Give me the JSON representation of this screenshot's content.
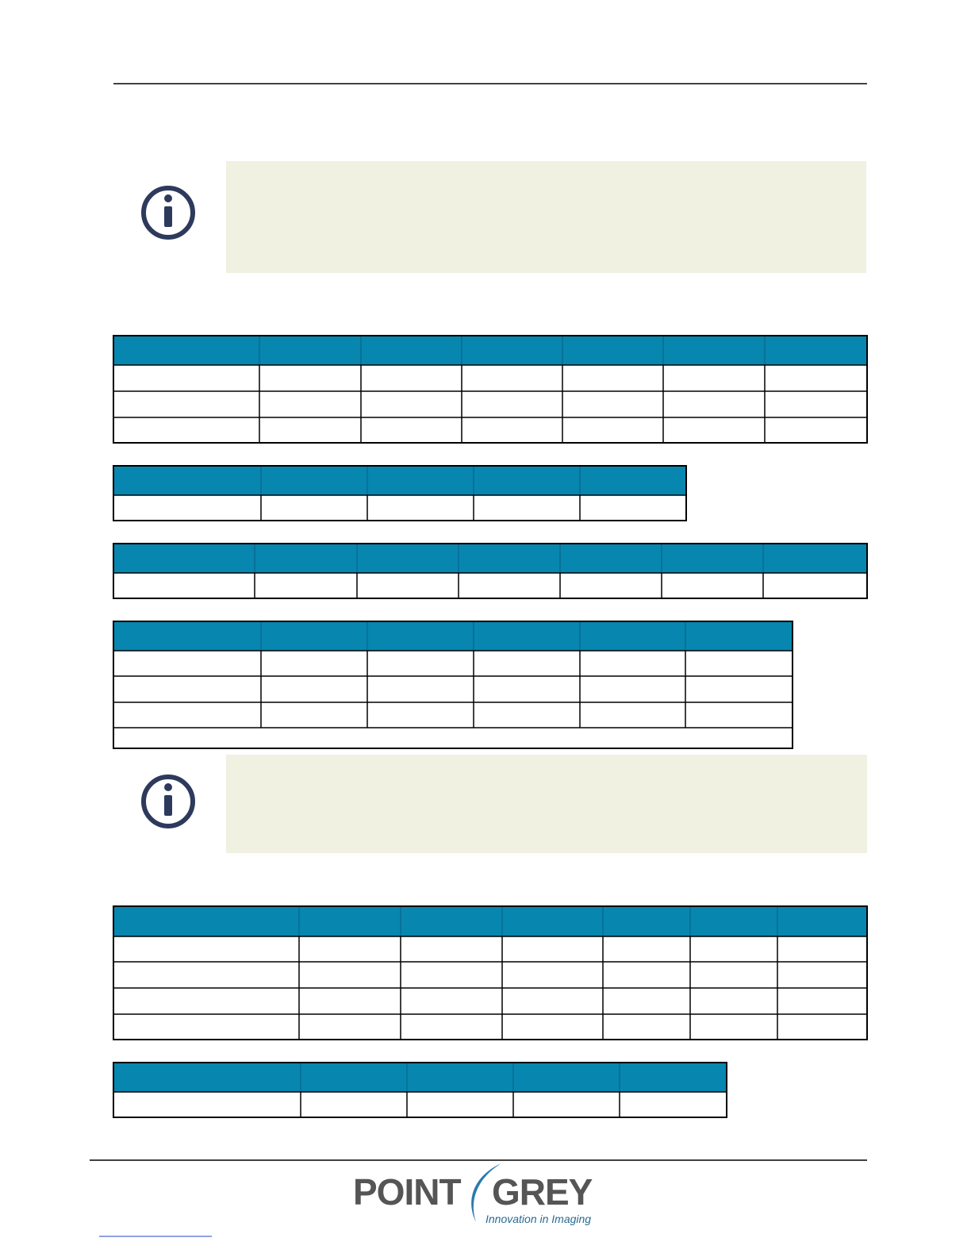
{
  "footer": {
    "logo": {
      "left": "POINT",
      "right": "GREY",
      "tagline": "Innovation in Imaging"
    }
  }
}
